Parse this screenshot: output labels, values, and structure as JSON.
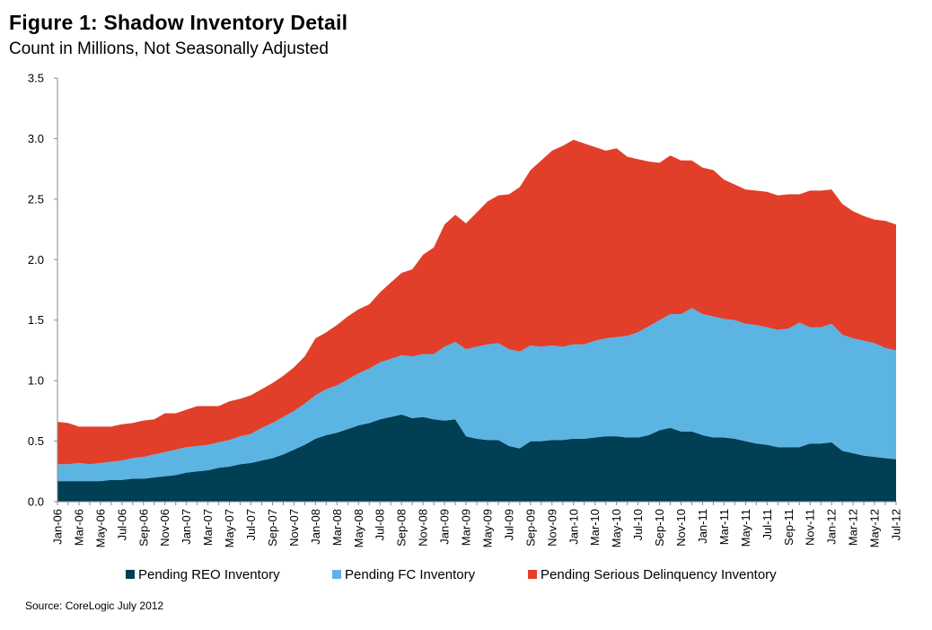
{
  "title": "Figure 1: Shadow Inventory Detail",
  "subtitle": "Count in Millions, Not Seasonally Adjusted",
  "source": "Source: CoreLogic July 2012",
  "chart_data": {
    "type": "area",
    "stacked": true,
    "title": "Figure 1: Shadow Inventory Detail",
    "subtitle": "Count in Millions, Not Seasonally Adjusted",
    "ylim": [
      0,
      3.5
    ],
    "yticks": [
      "0.0",
      "0.5",
      "1.0",
      "1.5",
      "2.0",
      "2.5",
      "3.0",
      "3.5"
    ],
    "tick_labels": [
      "Jan-06",
      "Mar-06",
      "May-06",
      "Jul-06",
      "Sep-06",
      "Nov-06",
      "Jan-07",
      "Mar-07",
      "May-07",
      "Jul-07",
      "Sep-07",
      "Nov-07",
      "Jan-08",
      "Mar-08",
      "May-08",
      "Jul-08",
      "Sep-08",
      "Nov-08",
      "Jan-09",
      "Mar-09",
      "May-09",
      "Jul-09",
      "Sep-09",
      "Nov-09",
      "Jan-10",
      "Mar-10",
      "May-10",
      "Jul-10",
      "Sep-10",
      "Nov-10",
      "Jan-11",
      "Mar-11",
      "May-11",
      "Jul-11",
      "Sep-11",
      "Nov-11",
      "Jan-12",
      "Mar-12",
      "May-12",
      "Jul-12"
    ],
    "x": [
      "Jan-06",
      "Feb-06",
      "Mar-06",
      "Apr-06",
      "May-06",
      "Jun-06",
      "Jul-06",
      "Aug-06",
      "Sep-06",
      "Oct-06",
      "Nov-06",
      "Dec-06",
      "Jan-07",
      "Feb-07",
      "Mar-07",
      "Apr-07",
      "May-07",
      "Jun-07",
      "Jul-07",
      "Aug-07",
      "Sep-07",
      "Oct-07",
      "Nov-07",
      "Dec-07",
      "Jan-08",
      "Feb-08",
      "Mar-08",
      "Apr-08",
      "May-08",
      "Jun-08",
      "Jul-08",
      "Aug-08",
      "Sep-08",
      "Oct-08",
      "Nov-08",
      "Dec-08",
      "Jan-09",
      "Feb-09",
      "Mar-09",
      "Apr-09",
      "May-09",
      "Jun-09",
      "Jul-09",
      "Aug-09",
      "Sep-09",
      "Oct-09",
      "Nov-09",
      "Dec-09",
      "Jan-10",
      "Feb-10",
      "Mar-10",
      "Apr-10",
      "May-10",
      "Jun-10",
      "Jul-10",
      "Aug-10",
      "Sep-10",
      "Oct-10",
      "Nov-10",
      "Dec-10",
      "Jan-11",
      "Feb-11",
      "Mar-11",
      "Apr-11",
      "May-11",
      "Jun-11",
      "Jul-11",
      "Aug-11",
      "Sep-11",
      "Oct-11",
      "Nov-11",
      "Dec-11",
      "Jan-12",
      "Feb-12",
      "Mar-12",
      "Apr-12",
      "May-12",
      "Jun-12",
      "Jul-12"
    ],
    "series": [
      {
        "name": "Pending REO Inventory",
        "color": "#003f54",
        "values": [
          0.17,
          0.17,
          0.17,
          0.17,
          0.17,
          0.18,
          0.18,
          0.19,
          0.19,
          0.2,
          0.21,
          0.22,
          0.24,
          0.25,
          0.26,
          0.28,
          0.29,
          0.31,
          0.32,
          0.34,
          0.36,
          0.39,
          0.43,
          0.47,
          0.52,
          0.55,
          0.57,
          0.6,
          0.63,
          0.65,
          0.68,
          0.7,
          0.72,
          0.69,
          0.7,
          0.68,
          0.67,
          0.68,
          0.54,
          0.52,
          0.51,
          0.51,
          0.46,
          0.44,
          0.5,
          0.5,
          0.51,
          0.51,
          0.52,
          0.52,
          0.53,
          0.54,
          0.54,
          0.53,
          0.53,
          0.55,
          0.59,
          0.61,
          0.58,
          0.58,
          0.55,
          0.53,
          0.53,
          0.52,
          0.5,
          0.48,
          0.47,
          0.45,
          0.45,
          0.45,
          0.48,
          0.48,
          0.49,
          0.42,
          0.4,
          0.38,
          0.37,
          0.36,
          0.35
        ]
      },
      {
        "name": "Pending FC Inventory",
        "color": "#5cb4e3",
        "values": [
          0.14,
          0.14,
          0.15,
          0.14,
          0.15,
          0.15,
          0.16,
          0.17,
          0.18,
          0.19,
          0.2,
          0.21,
          0.21,
          0.21,
          0.21,
          0.21,
          0.22,
          0.23,
          0.24,
          0.27,
          0.29,
          0.31,
          0.32,
          0.34,
          0.36,
          0.38,
          0.39,
          0.41,
          0.43,
          0.45,
          0.47,
          0.48,
          0.49,
          0.51,
          0.52,
          0.54,
          0.61,
          0.64,
          0.72,
          0.76,
          0.79,
          0.8,
          0.8,
          0.8,
          0.79,
          0.78,
          0.78,
          0.77,
          0.78,
          0.78,
          0.8,
          0.81,
          0.82,
          0.84,
          0.87,
          0.9,
          0.91,
          0.94,
          0.97,
          1.02,
          1.0,
          1.0,
          0.98,
          0.98,
          0.97,
          0.98,
          0.97,
          0.97,
          0.98,
          1.03,
          0.96,
          0.96,
          0.98,
          0.96,
          0.95,
          0.95,
          0.94,
          0.91,
          0.9
        ]
      },
      {
        "name": "Pending Serious Delinquency Inventory",
        "color": "#e13f2a",
        "values": [
          0.35,
          0.34,
          0.3,
          0.31,
          0.3,
          0.29,
          0.3,
          0.29,
          0.3,
          0.29,
          0.32,
          0.3,
          0.31,
          0.33,
          0.32,
          0.3,
          0.32,
          0.31,
          0.32,
          0.32,
          0.33,
          0.34,
          0.36,
          0.39,
          0.47,
          0.47,
          0.5,
          0.52,
          0.53,
          0.53,
          0.58,
          0.63,
          0.68,
          0.72,
          0.82,
          0.88,
          1.01,
          1.05,
          1.04,
          1.11,
          1.18,
          1.22,
          1.28,
          1.36,
          1.45,
          1.54,
          1.61,
          1.66,
          1.69,
          1.66,
          1.6,
          1.55,
          1.56,
          1.48,
          1.43,
          1.36,
          1.3,
          1.31,
          1.27,
          1.22,
          1.21,
          1.21,
          1.15,
          1.12,
          1.11,
          1.11,
          1.12,
          1.11,
          1.11,
          1.06,
          1.13,
          1.13,
          1.11,
          1.08,
          1.05,
          1.03,
          1.02,
          1.05,
          1.04
        ]
      }
    ],
    "legend_position": "bottom",
    "grid": false
  }
}
